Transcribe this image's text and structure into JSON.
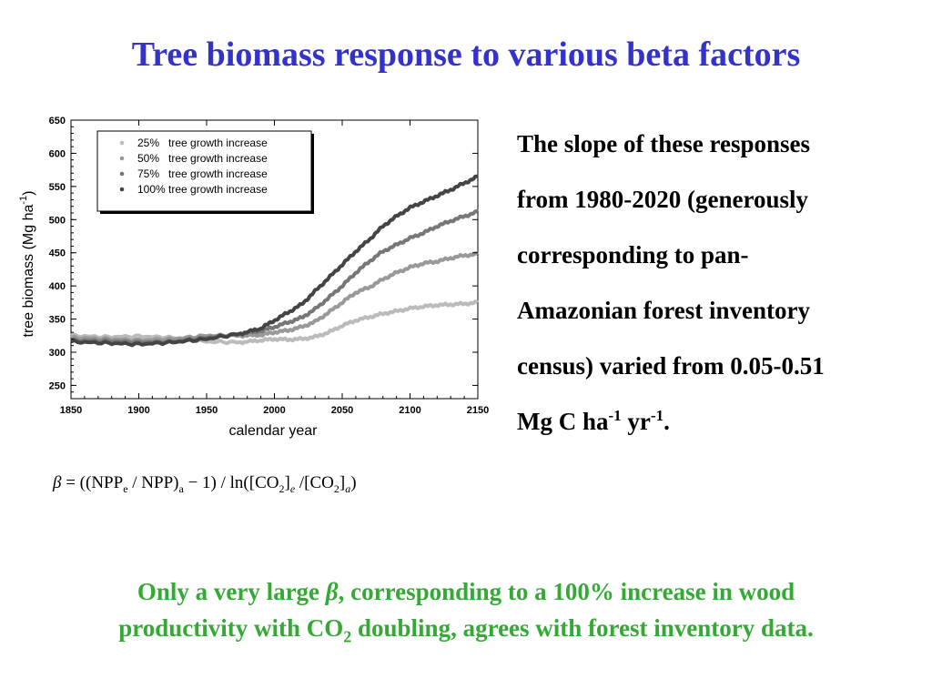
{
  "title": "Tree biomass response to various beta factors",
  "side_text": {
    "line1": "The slope of these responses",
    "line2": "from 1980-2020 (generously",
    "line3": "corresponding to pan-",
    "line4": "Amazonian forest inventory",
    "line5": "census) varied from 0.05-0.51",
    "line6_pre": "Mg C ha",
    "sup1": "-1",
    "mid": " yr",
    "sup2": "-1",
    "end": "."
  },
  "formula": {
    "beta": "β",
    "p1": " = ((NPP",
    "sub_e": "e",
    "p2": " / NPP)",
    "sub_a": "a",
    "p3": " − 1) / ln([CO",
    "sub_2a": "2",
    "p4": "]",
    "it_e": "e",
    "p5": " /[CO",
    "sub_2b": "2",
    "p6": "]",
    "it_a": "a",
    "p7": ")"
  },
  "conclusion": {
    "p1": "Only a very large ",
    "beta": "β",
    "p2": ", corresponding to a 100% increase in wood",
    "p3": "productivity with CO",
    "sub": "2",
    "p4": " doubling, agrees with forest inventory data."
  },
  "chart_data": {
    "type": "line",
    "xlabel": "calendar year",
    "ylabel": "tree biomass (Mg ha",
    "ylabel_sup": "-1",
    "ylabel_end": ")",
    "xlim": [
      1850,
      2150
    ],
    "ylim": [
      230,
      650
    ],
    "x_ticks": [
      "1850",
      "1900",
      "1950",
      "2000",
      "2050",
      "2100",
      "2150"
    ],
    "y_ticks": [
      "250",
      "300",
      "350",
      "400",
      "450",
      "500",
      "550",
      "600",
      "650"
    ],
    "legend_position": "top-left",
    "x": [
      1850,
      1875,
      1900,
      1925,
      1950,
      1975,
      1990,
      2000,
      2010,
      2020,
      2030,
      2040,
      2050,
      2060,
      2070,
      2080,
      2090,
      2100,
      2110,
      2120,
      2130,
      2140,
      2150
    ],
    "series": [
      {
        "name": "25%   tree growth increase",
        "color": "#bbbbbb",
        "values": [
          325,
          323,
          324,
          322,
          316,
          315,
          318,
          320,
          319,
          320,
          323,
          330,
          340,
          348,
          353,
          358,
          362,
          366,
          369,
          371,
          372,
          373,
          375
        ]
      },
      {
        "name": "50%   tree growth increase",
        "color": "#999999",
        "values": [
          322,
          320,
          318,
          320,
          325,
          325,
          326,
          330,
          333,
          338,
          346,
          360,
          375,
          390,
          398,
          410,
          420,
          428,
          434,
          437,
          442,
          446,
          448
        ]
      },
      {
        "name": "75%   tree growth increase",
        "color": "#777777",
        "values": [
          318,
          317,
          315,
          316,
          322,
          328,
          332,
          338,
          345,
          352,
          365,
          382,
          400,
          420,
          437,
          452,
          462,
          472,
          480,
          490,
          498,
          505,
          512
        ]
      },
      {
        "name": "100% tree growth increase",
        "color": "#444444",
        "values": [
          316,
          314,
          312,
          315,
          320,
          328,
          336,
          348,
          360,
          372,
          392,
          412,
          432,
          452,
          470,
          490,
          505,
          518,
          527,
          536,
          545,
          555,
          565
        ]
      }
    ]
  }
}
